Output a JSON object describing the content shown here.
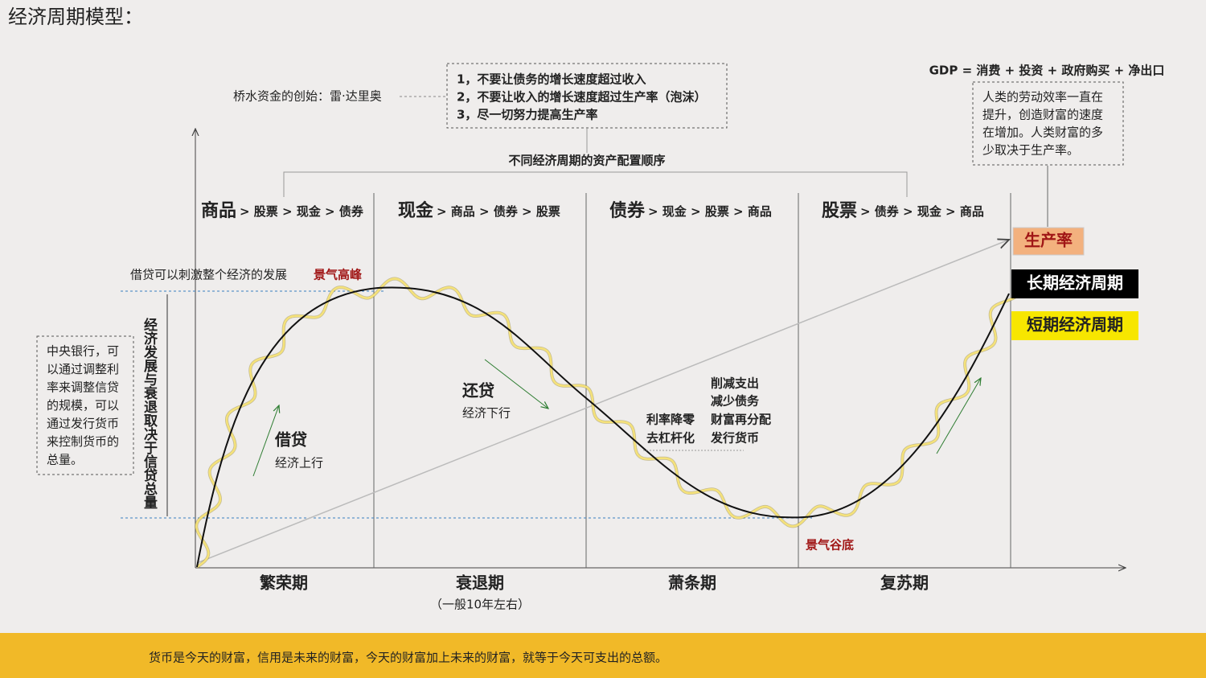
{
  "title": "经济周期模型：",
  "founder": "桥水资金的创始：雷·达里奥",
  "principles": [
    "1，不要让债务的增长速度超过收入",
    "2，不要让收入的增长速度超过生产率（泡沫）",
    "3，尽一切努力提高生产率"
  ],
  "allocation_title": "不同经济周期的资产配置顺序",
  "phases": [
    {
      "lead": "商品",
      "order": "> 股票 > 现金 > 债券",
      "period": "繁荣期"
    },
    {
      "lead": "现金",
      "order": "> 商品 > 债券 > 股票",
      "period": "衰退期",
      "note": "（一般10年左右）"
    },
    {
      "lead": "债券",
      "order": "> 现金 > 股票 > 商品",
      "period": "萧条期"
    },
    {
      "lead": "股票",
      "order": "> 债券 > 现金 > 商品",
      "period": "复苏期"
    }
  ],
  "gdp": "GDP = 消费 + 投资 + 政府购买 + 净出口",
  "productivity_note": [
    "人类的劳动效率一直在",
    "提升，创造财富的速度",
    "在增加。人类财富的多",
    "少取决于生产率。"
  ],
  "credit_note": "借贷可以刺激整个经济的发展",
  "peak": "景气高峰",
  "trough": "景气谷底",
  "axis_label": "经济发展与衰退取决于信贷总量",
  "central_bank": [
    "中央银行，可",
    "以通过调整利",
    "率来调整信贷",
    "的规模，可以",
    "通过发行货币",
    "来控制货币的",
    "总量。"
  ],
  "borrow": {
    "title": "借贷",
    "sub": "经济上行"
  },
  "repay": {
    "title": "还贷",
    "sub": "经济下行"
  },
  "measures_left": [
    "利率降零",
    "去杠杆化"
  ],
  "measures_right": [
    "削减支出",
    "减少债务",
    "财富再分配",
    "发行货币"
  ],
  "legend": {
    "productivity": "生产率",
    "long": "长期经济周期",
    "short": "短期经济周期"
  },
  "footer": "货币是今天的财富，信用是未来的财富，今天的财富加上未来的财富，就等于今天可支出的总额。"
}
